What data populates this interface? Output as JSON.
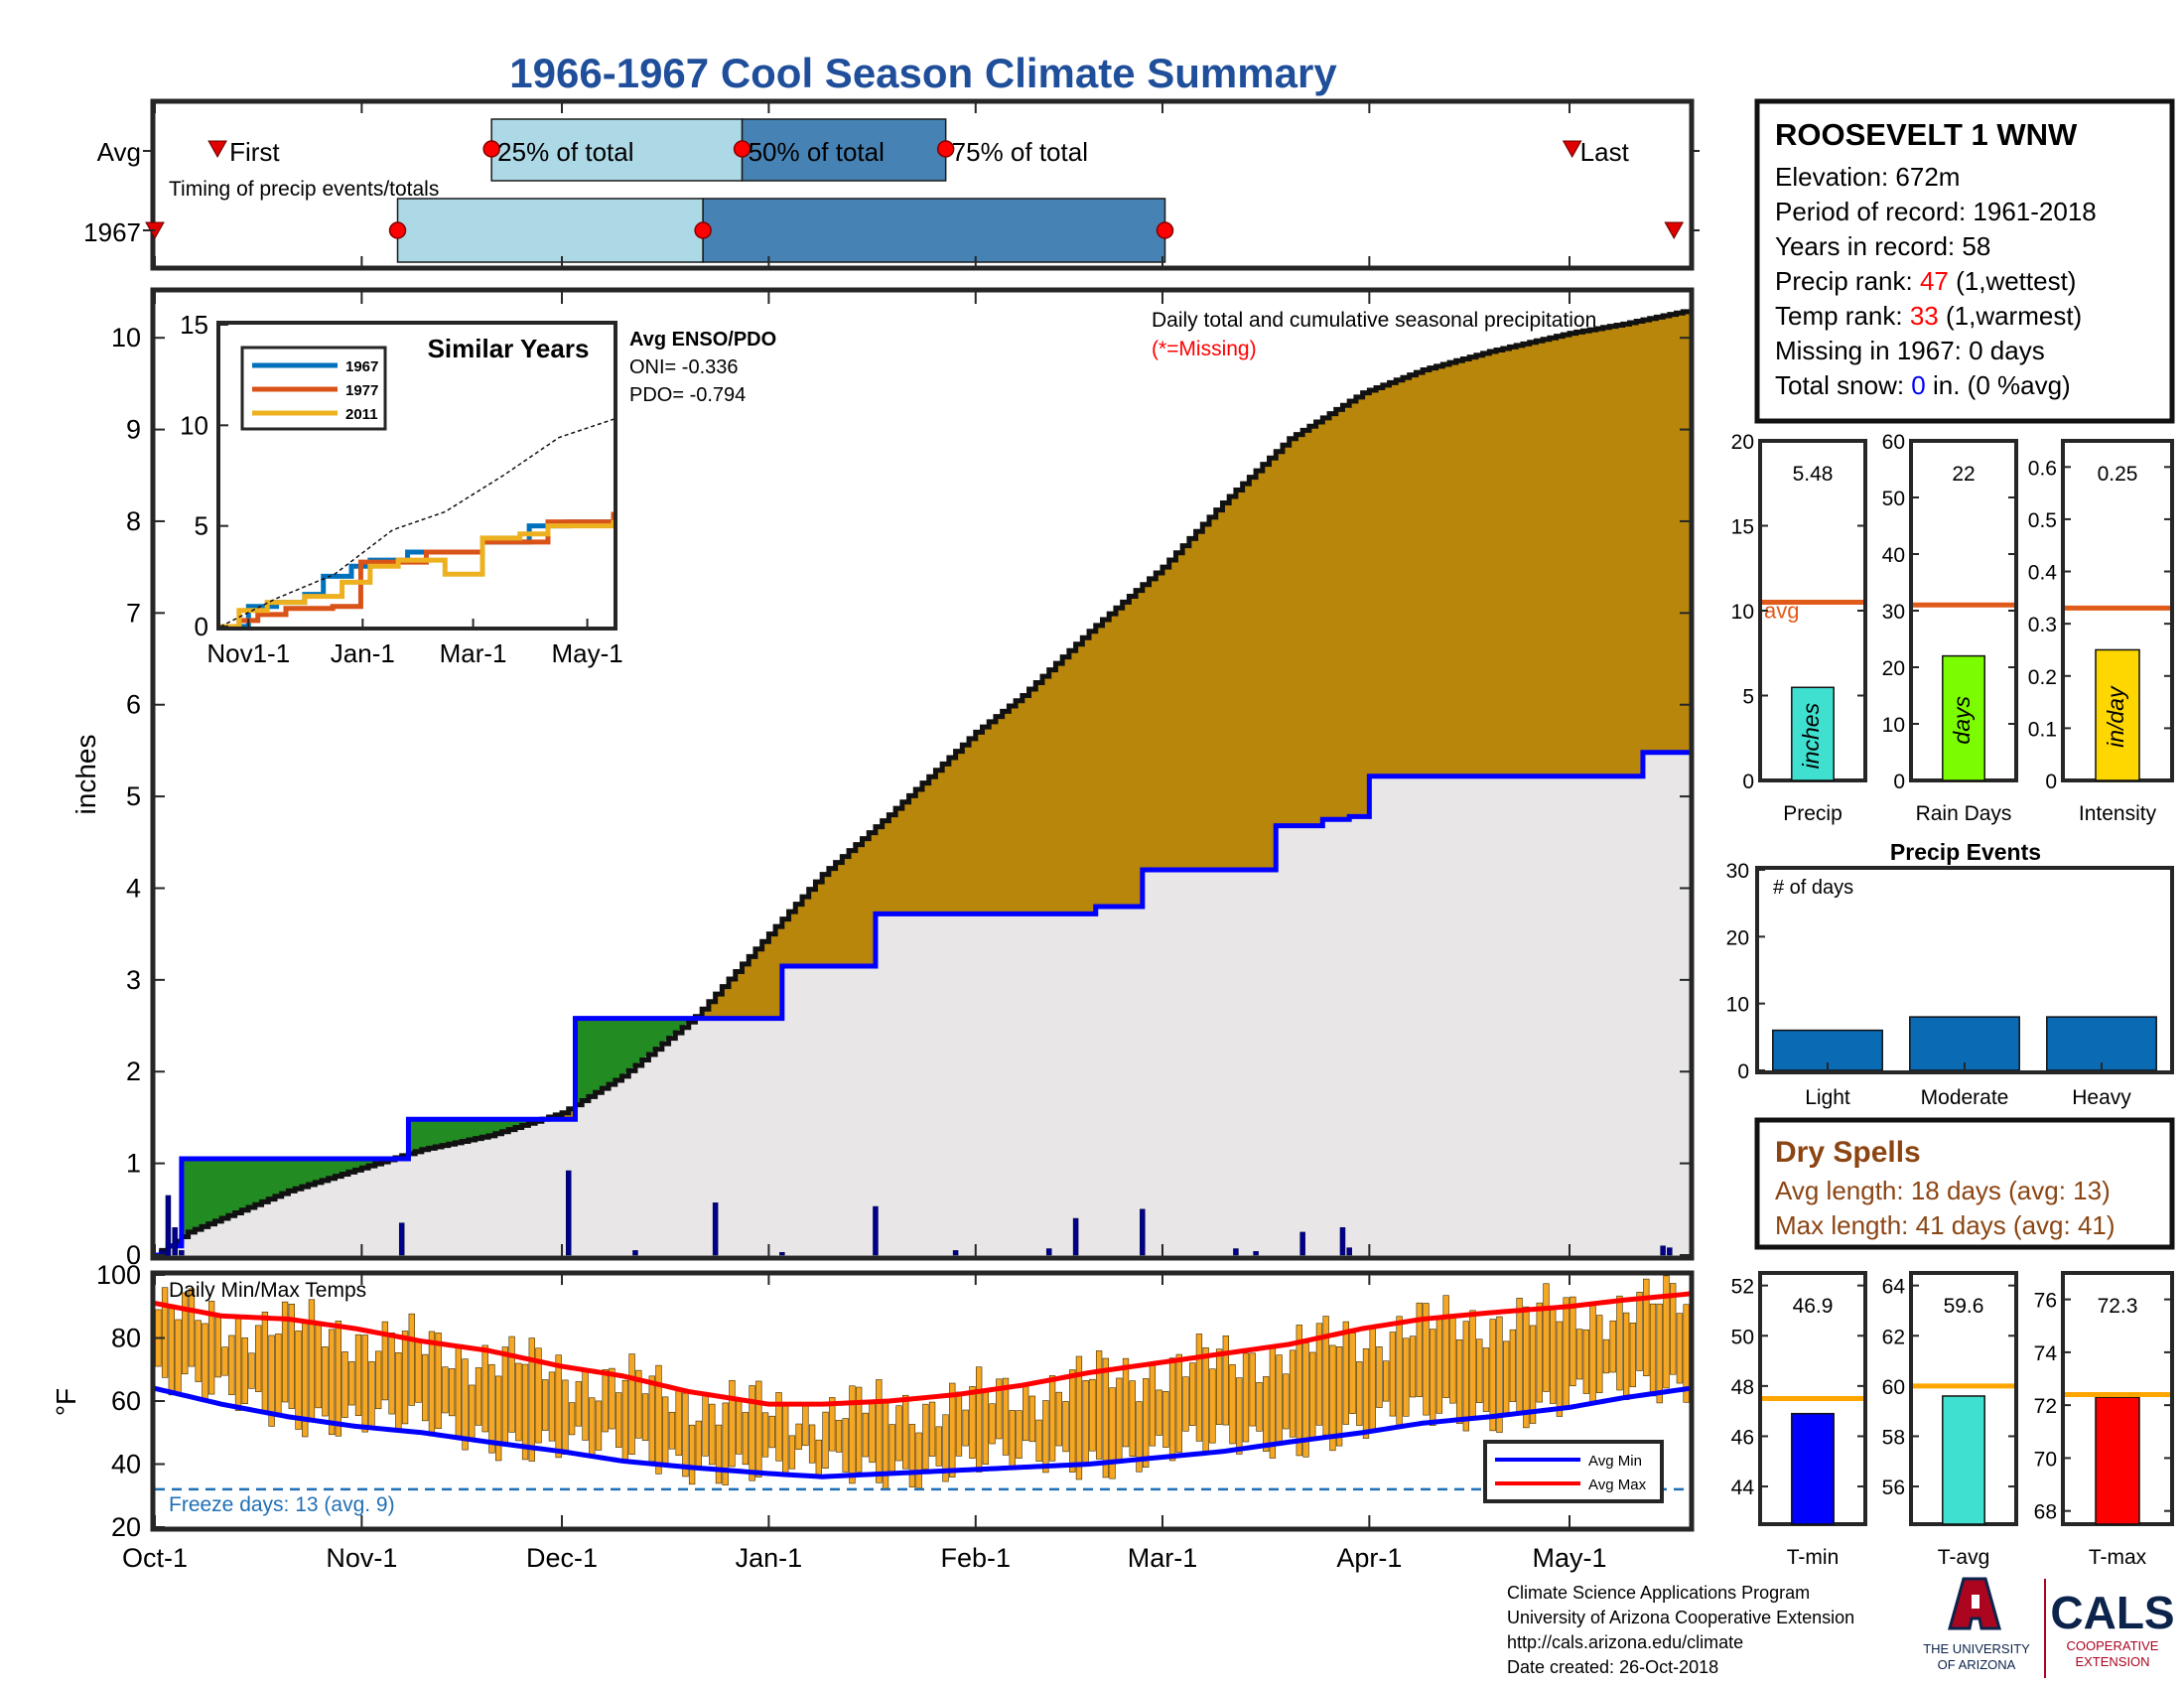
{
  "title": "1966-1967 Cool Season Climate Summary",
  "station": {
    "name": "ROOSEVELT 1 WNW",
    "elevation_label": "Elevation: 672m",
    "period_label": "Period of record: 1961-2018",
    "years_label": "Years in record: 58",
    "precip_rank_prefix": "Precip rank: ",
    "precip_rank_value": "47",
    "precip_rank_suffix": " (1,wettest)",
    "temp_rank_prefix": "Temp rank: ",
    "temp_rank_value": "33",
    "temp_rank_suffix": " (1,warmest)",
    "missing_label": "Missing in 1967: 0 days",
    "snow_prefix": "Total snow: ",
    "snow_value": "0",
    "snow_suffix": " in. (0 %avg)"
  },
  "timing": {
    "title": "Timing of precip events/totals",
    "row_avg": "Avg",
    "row_year": "1967",
    "first_label": "First",
    "last_label": "Last",
    "p25_label": "25% of total",
    "p50_label": "50% of total",
    "p75_label": "75% of total",
    "avg": {
      "first": 8,
      "p25": 43,
      "p50": 75,
      "p75": 101,
      "last": 181
    },
    "year": {
      "first": 0,
      "p25": 31,
      "p50": 70,
      "p75": 129,
      "last": 194
    }
  },
  "precip_panel": {
    "annotation_title": "Daily total and cumulative seasonal precipitation",
    "annotation_missing": "(*=Missing)",
    "ylabel": "inches",
    "ylim": [
      0,
      10.5
    ],
    "yticks": [
      "0",
      "1",
      "2",
      "3",
      "4",
      "5",
      "6",
      "7",
      "8",
      "9",
      "10"
    ],
    "enso_title": "Avg ENSO/PDO",
    "oni_label": "ONI= -0.336",
    "pdo_label": "PDO= -0.794"
  },
  "similar_years": {
    "title": "Similar Years",
    "yticks": [
      "0",
      "5",
      "10",
      "15"
    ],
    "xticks": [
      "Nov1-1",
      "Jan-1",
      "Mar-1",
      "May-1"
    ],
    "legend": [
      "1967",
      "1977",
      "2011"
    ]
  },
  "temp_panel": {
    "title": "Daily Min/Max Temps",
    "ylabel": "°F",
    "ylim": [
      20,
      100
    ],
    "yticks": [
      "20",
      "40",
      "60",
      "80",
      "100"
    ],
    "freeze_label": "Freeze days: 13 (avg. 9)",
    "legend_min": "Avg Min",
    "legend_max": "Avg Max"
  },
  "xticks": [
    "Oct-1",
    "Nov-1",
    "Dec-1",
    "Jan-1",
    "Feb-1",
    "Mar-1",
    "Apr-1",
    "May-1"
  ],
  "stat_panels": {
    "precip": {
      "label": "Precip",
      "value_label": "5.48",
      "unit": "inches",
      "value": 5.48,
      "avg": 10.5,
      "ymax": 20,
      "avg_label": "avg",
      "yticks": [
        "0",
        "5",
        "10",
        "15",
        "20"
      ],
      "color": "#40e0d0"
    },
    "rain_days": {
      "label": "Rain Days",
      "value_label": "22",
      "unit": "days",
      "value": 22,
      "avg": 31,
      "ymax": 60,
      "yticks": [
        "0",
        "10",
        "20",
        "30",
        "40",
        "50",
        "60"
      ],
      "color": "#7cfc00"
    },
    "intensity": {
      "label": "Intensity",
      "value_label": "0.25",
      "unit": "in/day",
      "value": 0.25,
      "avg": 0.33,
      "ymax": 0.65,
      "yticks": [
        "0",
        "0.1",
        "0.2",
        "0.3",
        "0.4",
        "0.5",
        "0.6"
      ],
      "color": "#ffd700"
    }
  },
  "precip_events": {
    "title": "Precip Events",
    "ylabel_inside": "# of days",
    "yticks": [
      "0",
      "10",
      "20",
      "30"
    ],
    "categories": [
      "Light",
      "Moderate",
      "Heavy"
    ],
    "values": [
      6,
      8,
      8
    ]
  },
  "dry_spells": {
    "title": "Dry Spells",
    "avg_label": "Avg length: 18 days (avg: 13)",
    "max_label": "Max length: 41 days (avg: 41)"
  },
  "temp_stats": {
    "tmin": {
      "label": "T-min",
      "value_label": "46.9",
      "value": 46.9,
      "avg": 47.5,
      "ylim": [
        42.5,
        52.5
      ],
      "yticks": [
        "44",
        "46",
        "48",
        "50",
        "52"
      ],
      "color": "#0000ff"
    },
    "tavg": {
      "label": "T-avg",
      "value_label": "59.6",
      "value": 59.6,
      "avg": 60,
      "ylim": [
        54.5,
        64.5
      ],
      "yticks": [
        "56",
        "58",
        "60",
        "62",
        "64"
      ],
      "color": "#40e0d0"
    },
    "tmax": {
      "label": "T-max",
      "value_label": "72.3",
      "value": 72.3,
      "avg": 72.4,
      "ylim": [
        67.5,
        77
      ],
      "yticks": [
        "68",
        "70",
        "72",
        "74",
        "76"
      ],
      "color": "#ff0000"
    }
  },
  "footer": {
    "line1": "Climate Science Applications Program",
    "line2": "University of Arizona Cooperative Extension",
    "line3": "http://cals.arizona.edu/climate",
    "line4": " Date created: 26-Oct-2018",
    "logo_ua_1": "THE UNIVERSITY",
    "logo_ua_2": "OF ARIZONA",
    "logo_cals": "CALS",
    "logo_cals_1": "COOPERATIVE",
    "logo_cals_2": "EXTENSION"
  },
  "colors": {
    "title": "#1f4e9a",
    "avg_cum_fill": "#b8860b",
    "surplus_fill": "#228b22",
    "season_fill": "#e8e6e6",
    "season_line": "#0000ff",
    "daily_bar": "#00008b",
    "temp_bar": "#f5a623",
    "avg_max_line": "#ff0000",
    "avg_min_line": "#0000ff",
    "freeze_line": "#1f6fb5",
    "rank": "#ff0000",
    "snow": "#0000ff",
    "dry_spells": "#8b4513",
    "stat_avg_line": "#e05a1a",
    "temp_avg_line": "#ffa500",
    "events_bar": "#0a6ab4"
  },
  "chart_data": [
    {
      "type": "area",
      "name": "Cumulative seasonal precipitation",
      "xlabel": "",
      "ylabel": "inches",
      "ylim": [
        0,
        10.5
      ],
      "xticks": [
        "Oct-1",
        "Nov-1",
        "Dec-1",
        "Jan-1",
        "Feb-1",
        "Mar-1",
        "Apr-1",
        "May-1"
      ],
      "avg_cumulative_day": [
        0,
        5,
        10,
        20,
        31,
        40,
        50,
        61,
        70,
        81,
        92,
        100,
        110,
        123,
        130,
        140,
        151,
        160,
        170,
        181,
        190,
        200,
        212,
        220,
        230
      ],
      "avg_cumulative_in": [
        0,
        0.25,
        0.4,
        0.7,
        0.95,
        1.15,
        1.3,
        1.55,
        1.95,
        2.6,
        3.5,
        4.15,
        4.8,
        5.7,
        6.1,
        6.8,
        7.5,
        8.2,
        8.9,
        9.4,
        9.65,
        9.85,
        10.05,
        10.15,
        10.3
      ],
      "season_day": [
        0,
        2,
        4,
        36,
        38,
        61,
        63,
        72,
        94,
        108,
        134,
        141,
        148,
        165,
        168,
        175,
        179,
        182,
        220,
        223,
        230
      ],
      "season_in": [
        0,
        0.1,
        1.05,
        1.05,
        1.48,
        1.48,
        2.58,
        2.58,
        3.15,
        3.72,
        3.72,
        3.8,
        4.2,
        4.2,
        4.68,
        4.75,
        4.78,
        5.22,
        5.22,
        5.48,
        5.48
      ],
      "daily_day": [
        1,
        2,
        3,
        4,
        37,
        62,
        72,
        84,
        94,
        108,
        120,
        134,
        138,
        148,
        162,
        165,
        172,
        178,
        179,
        226,
        227
      ],
      "daily_in": [
        0.05,
        0.65,
        0.3,
        0.05,
        0.35,
        0.92,
        0.05,
        0.57,
        0.03,
        0.53,
        0.05,
        0.07,
        0.4,
        0.5,
        0.07,
        0.04,
        0.25,
        0.3,
        0.08,
        0.1,
        0.08
      ]
    },
    {
      "type": "line",
      "name": "Similar Years",
      "ylim": [
        0,
        15
      ],
      "series": [
        {
          "name": "1967",
          "x": [
            0,
            15,
            30,
            45,
            55,
            70,
            80,
            100,
            120,
            140,
            165,
            186,
            210
          ],
          "y": [
            0,
            1,
            1.2,
            1.6,
            2.5,
            3.0,
            3.3,
            3.7,
            3.7,
            4.2,
            5.0,
            5.2,
            5.5
          ]
        },
        {
          "name": "1977",
          "x": [
            0,
            10,
            20,
            35,
            60,
            70,
            75,
            110,
            125,
            140,
            175,
            210
          ],
          "y": [
            0,
            0.3,
            0.6,
            0.9,
            1.0,
            1.0,
            3.2,
            3.7,
            3.7,
            4.2,
            5.2,
            5.7
          ]
        },
        {
          "name": "2011",
          "x": [
            0,
            10,
            25,
            45,
            65,
            80,
            95,
            115,
            120,
            140,
            160,
            175,
            210
          ],
          "y": [
            0,
            0.8,
            1.2,
            1.5,
            2.2,
            3.0,
            3.3,
            3.3,
            2.6,
            4.4,
            4.6,
            5.0,
            5.3
          ]
        },
        {
          "name": "Average",
          "x": [
            0,
            30,
            61,
            92,
            120,
            151,
            181,
            210
          ],
          "y": [
            0,
            1.4,
            2.6,
            4.8,
            5.7,
            7.5,
            9.4,
            10.3
          ]
        }
      ]
    },
    {
      "type": "bar",
      "name": "Daily Min/Max Temps",
      "ylabel": "°F",
      "ylim": [
        20,
        100
      ],
      "avg_max": {
        "day": [
          0,
          10,
          20,
          30,
          40,
          50,
          61,
          70,
          80,
          92,
          100,
          110,
          120,
          130,
          140,
          150,
          160,
          170,
          181,
          190,
          200,
          212,
          220,
          230
        ],
        "temp": [
          91,
          87,
          86,
          83,
          79,
          76,
          71,
          68,
          63,
          59,
          59,
          60,
          62,
          65,
          69,
          72,
          75,
          78,
          83,
          86,
          88,
          90,
          92,
          94
        ]
      },
      "avg_min": {
        "day": [
          0,
          10,
          20,
          30,
          40,
          50,
          61,
          70,
          80,
          92,
          100,
          110,
          120,
          130,
          140,
          150,
          160,
          170,
          181,
          190,
          200,
          212,
          220,
          230
        ],
        "temp": [
          64,
          59,
          55,
          52,
          50,
          47,
          44,
          41,
          39,
          37,
          36,
          37,
          38,
          39,
          40,
          42,
          44,
          47,
          50,
          53,
          55,
          58,
          61,
          64
        ]
      },
      "freeze_line": 32
    },
    {
      "type": "bar",
      "name": "Precip Events",
      "categories": [
        "Light",
        "Moderate",
        "Heavy"
      ],
      "values": [
        6,
        8,
        8
      ],
      "ylim": [
        0,
        30
      ]
    }
  ]
}
